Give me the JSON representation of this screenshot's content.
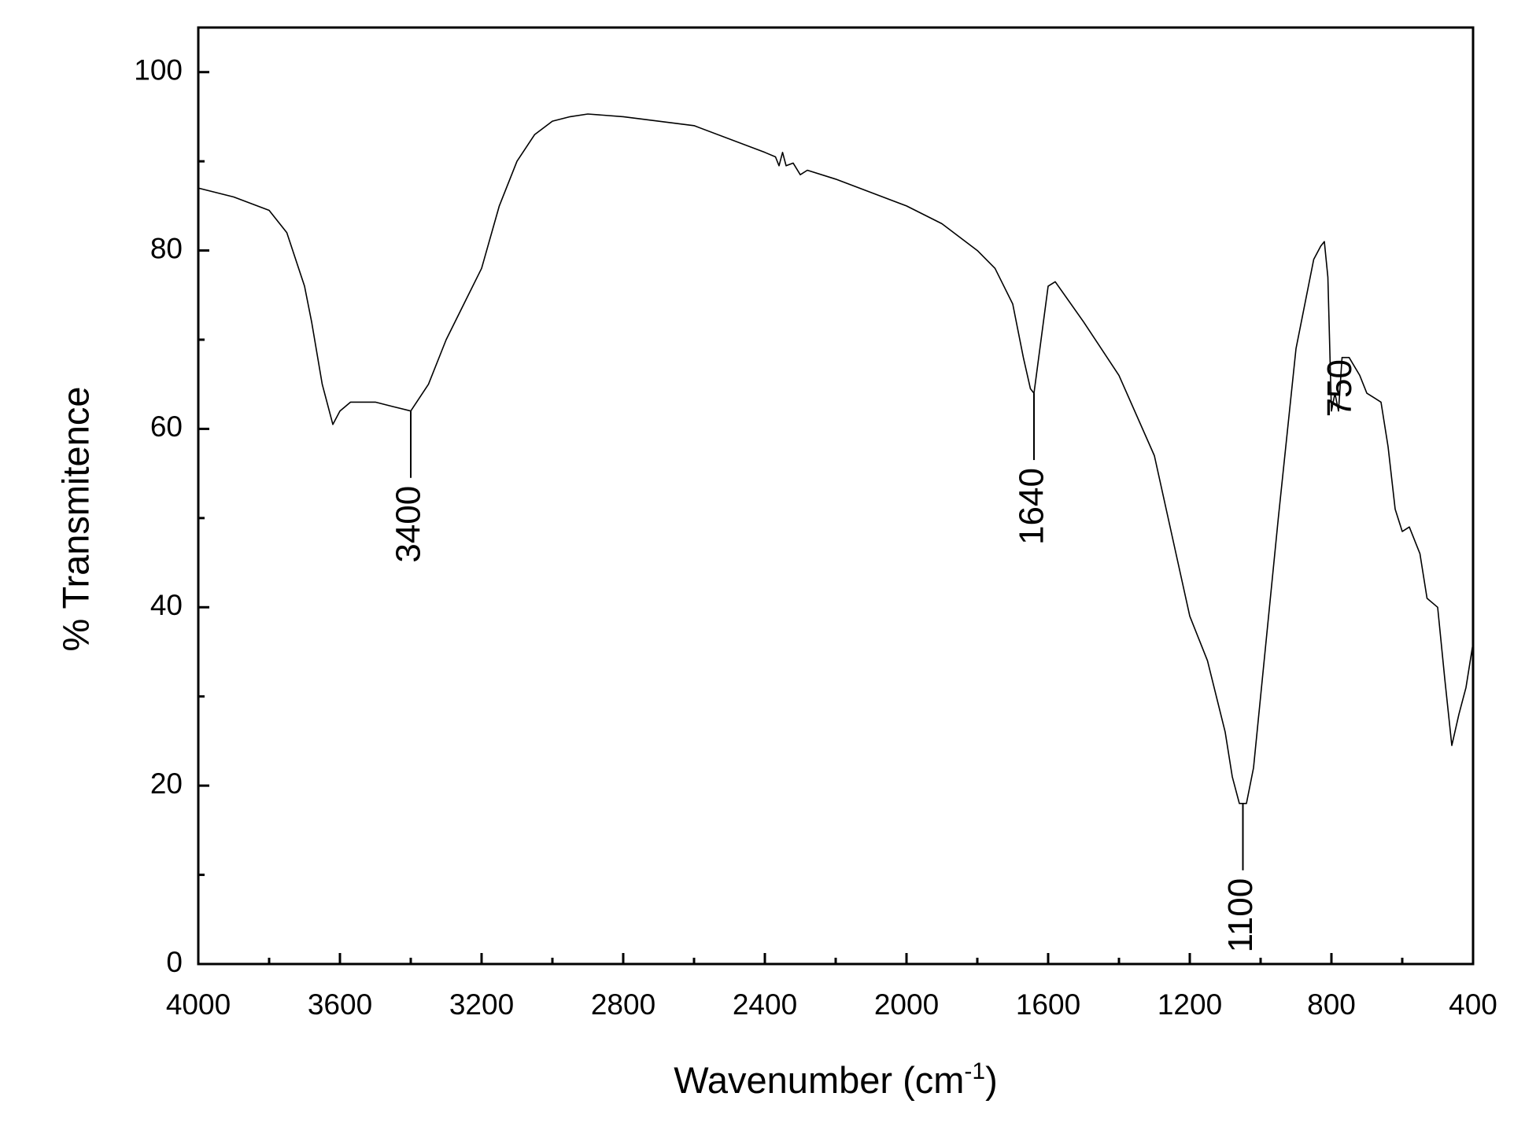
{
  "chart_data": {
    "type": "line",
    "xlabel": {
      "text": "Wavenumber (cm",
      "sup": "-1",
      "tail": ")"
    },
    "ylabel": "% Transmitence",
    "x": [
      4000,
      3900,
      3800,
      3750,
      3700,
      3680,
      3650,
      3620,
      3600,
      3570,
      3500,
      3450,
      3400,
      3350,
      3300,
      3250,
      3200,
      3150,
      3100,
      3050,
      3000,
      2950,
      2900,
      2800,
      2600,
      2400,
      2370,
      2360,
      2350,
      2340,
      2320,
      2300,
      2280,
      2200,
      2000,
      1900,
      1800,
      1750,
      1700,
      1670,
      1650,
      1640,
      1620,
      1600,
      1580,
      1500,
      1400,
      1300,
      1250,
      1200,
      1150,
      1100,
      1080,
      1060,
      1040,
      1020,
      1000,
      950,
      900,
      850,
      830,
      820,
      810,
      800,
      790,
      780,
      770,
      750,
      720,
      700,
      680,
      660,
      640,
      620,
      600,
      580,
      550,
      530,
      500,
      480,
      460,
      440,
      420,
      400
    ],
    "series": [
      {
        "name": "spectrum",
        "color": "#000000",
        "values": [
          87,
          86,
          84.5,
          82,
          76,
          72,
          65,
          60.5,
          62,
          63,
          63,
          62.5,
          62,
          65,
          70,
          74,
          78,
          85,
          90,
          93,
          94.5,
          95,
          95.3,
          95,
          94,
          91,
          90.5,
          89.5,
          91,
          89.5,
          89.8,
          88.5,
          89,
          88,
          85,
          83,
          80,
          78,
          74,
          68,
          64.5,
          64,
          70,
          76,
          76.5,
          72,
          66,
          57,
          48,
          39,
          34,
          26,
          21,
          18,
          18,
          22,
          30,
          50,
          69,
          79,
          80.5,
          81,
          77,
          62,
          64,
          62,
          68,
          68,
          66,
          64,
          63.5,
          63,
          58,
          51,
          48.5,
          49,
          46,
          41,
          40,
          32,
          24.5,
          28,
          31,
          36
        ]
      }
    ],
    "xlim": [
      4000,
      400
    ],
    "ylim": [
      0,
      105
    ],
    "xticks": [
      4000,
      3600,
      3200,
      2800,
      2400,
      2000,
      1600,
      1200,
      800,
      400
    ],
    "yticks": [
      0,
      20,
      40,
      60,
      80,
      100
    ],
    "xminorticks": [
      3800,
      3400,
      3000,
      2600,
      2200,
      1800,
      1400,
      1000,
      600
    ],
    "yminorticks": [
      10,
      30,
      50,
      70,
      90
    ],
    "annotations": [
      {
        "text": "3400",
        "x": 3400,
        "y": 62,
        "line": true
      },
      {
        "text": "1640",
        "x": 1640,
        "y": 64,
        "line": true
      },
      {
        "text": "1100",
        "x": 1050,
        "y": 18,
        "line": true
      },
      {
        "text": "750",
        "x": 770,
        "y": 60,
        "line": false
      }
    ]
  }
}
